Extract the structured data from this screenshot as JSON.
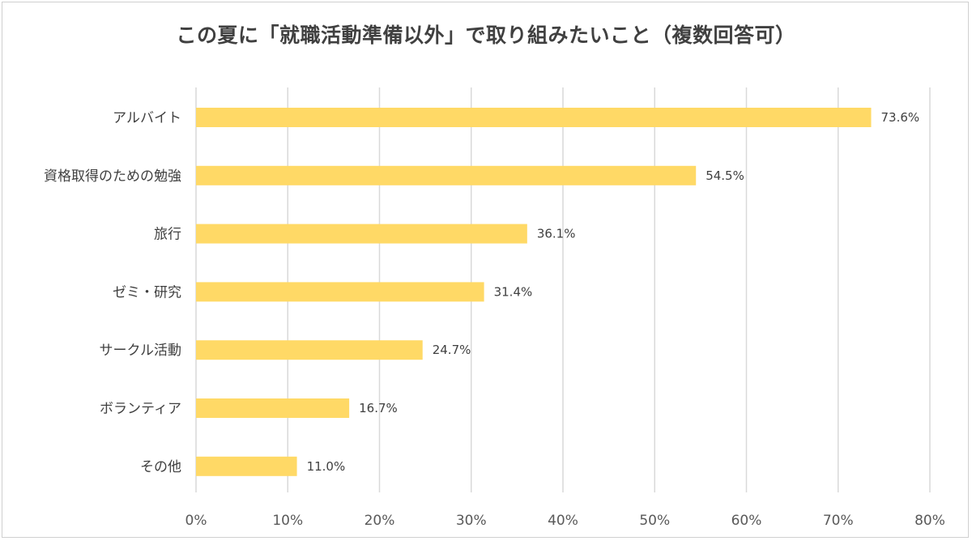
{
  "chart_data": {
    "type": "bar",
    "orientation": "horizontal",
    "title": "この夏に「就職活動準備以外」で取り組みたいこと（複数回答可）",
    "categories": [
      "アルバイト",
      "資格取得のための勉強",
      "旅行",
      "ゼミ・研究",
      "サークル活動",
      "ボランティア",
      "その他"
    ],
    "values": [
      73.6,
      54.5,
      36.1,
      31.4,
      24.7,
      16.7,
      11.0
    ],
    "data_labels": [
      "73.6%",
      "54.5%",
      "36.1%",
      "31.4%",
      "24.7%",
      "16.7%",
      "11.0%"
    ],
    "x_ticks": [
      "0%",
      "10%",
      "20%",
      "30%",
      "40%",
      "50%",
      "60%",
      "70%",
      "80%"
    ],
    "xlim": [
      0,
      80
    ],
    "xlabel": "",
    "ylabel": "",
    "grid": "vertical",
    "legend": "none",
    "bar_color": "#FFD966",
    "grid_color": "#D9D9D9"
  }
}
